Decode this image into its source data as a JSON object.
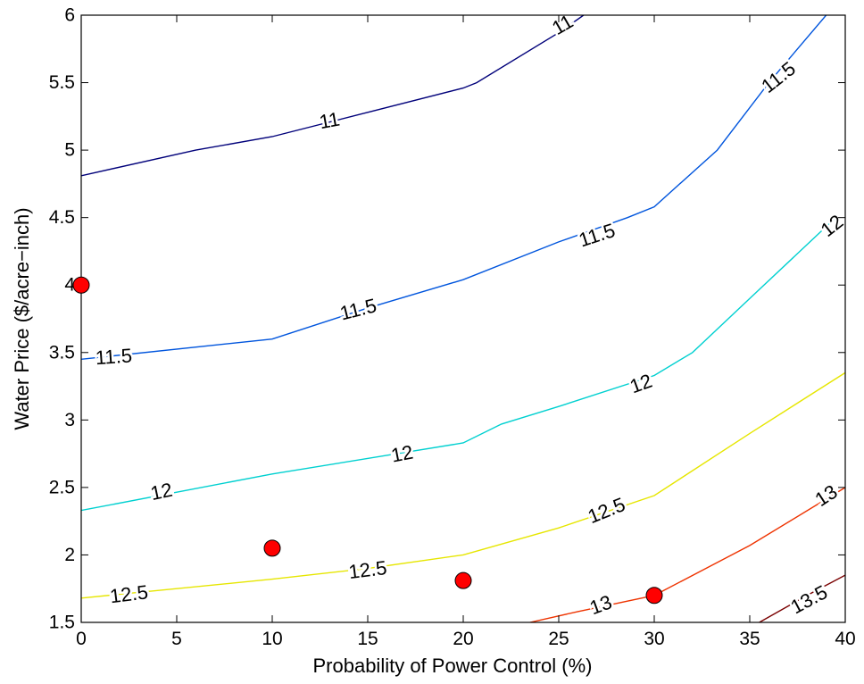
{
  "chart_data": {
    "type": "contour",
    "xlabel": "Probability of Power Control (%)",
    "ylabel": "Water Price ($/acre−inch)",
    "xlim": [
      0,
      40
    ],
    "ylim": [
      1.5,
      6
    ],
    "x_ticks": [
      0,
      5,
      10,
      15,
      20,
      25,
      30,
      35,
      40
    ],
    "y_ticks": [
      1.5,
      2,
      2.5,
      3,
      3.5,
      4,
      4.5,
      5,
      5.5,
      6
    ],
    "x_tick_labels": [
      "0",
      "5",
      "10",
      "15",
      "20",
      "25",
      "30",
      "35",
      "40"
    ],
    "y_tick_labels": [
      "1.5",
      "2",
      "2.5",
      "3",
      "3.5",
      "4",
      "4.5",
      "5",
      "5.5",
      "6"
    ],
    "grid": false,
    "contours": [
      {
        "level": 11,
        "color": "#00007a",
        "points": [
          [
            0,
            4.81
          ],
          [
            6,
            5.0
          ],
          [
            10,
            5.1
          ],
          [
            15,
            5.28
          ],
          [
            20,
            5.46
          ],
          [
            20.7,
            5.5
          ],
          [
            25,
            5.87
          ],
          [
            26.3,
            6.0
          ]
        ],
        "labels": [
          {
            "text": "11",
            "x": 13,
            "y": 5.22,
            "angle": -10
          },
          {
            "text": "11",
            "x": 25.2,
            "y": 5.93,
            "angle": -30
          }
        ]
      },
      {
        "level": 11.5,
        "color": "#0055dd",
        "points": [
          [
            0,
            3.45
          ],
          [
            10,
            3.6
          ],
          [
            15,
            3.83
          ],
          [
            20,
            4.04
          ],
          [
            25,
            4.32
          ],
          [
            28.6,
            4.5
          ],
          [
            30,
            4.58
          ],
          [
            33.3,
            5.0
          ],
          [
            36,
            5.5
          ],
          [
            39,
            6.0
          ]
        ],
        "labels": [
          {
            "text": "11.5",
            "x": 1.7,
            "y": 3.47,
            "angle": -4
          },
          {
            "text": "11.5",
            "x": 14.5,
            "y": 3.82,
            "angle": -14
          },
          {
            "text": "11.5",
            "x": 27.0,
            "y": 4.37,
            "angle": -18
          },
          {
            "text": "11.5",
            "x": 36.5,
            "y": 5.54,
            "angle": -38
          }
        ]
      },
      {
        "level": 12,
        "color": "#00d0d0",
        "points": [
          [
            0,
            2.33
          ],
          [
            10,
            2.6
          ],
          [
            20,
            2.83
          ],
          [
            22,
            2.97
          ],
          [
            25,
            3.1
          ],
          [
            30,
            3.33
          ],
          [
            32,
            3.5
          ],
          [
            35,
            3.9
          ],
          [
            39.5,
            4.5
          ]
        ],
        "labels": [
          {
            "text": "12",
            "x": 4.2,
            "y": 2.47,
            "angle": -12
          },
          {
            "text": "12",
            "x": 16.8,
            "y": 2.75,
            "angle": -11
          },
          {
            "text": "12",
            "x": 29.3,
            "y": 3.27,
            "angle": -20
          },
          {
            "text": "12",
            "x": 39.3,
            "y": 4.44,
            "angle": -38
          }
        ]
      },
      {
        "level": 12.5,
        "color": "#e6e600",
        "points": [
          [
            0,
            1.68
          ],
          [
            10,
            1.82
          ],
          [
            15,
            1.9
          ],
          [
            20,
            2.0
          ],
          [
            25,
            2.2
          ],
          [
            30,
            2.44
          ],
          [
            35,
            2.9
          ],
          [
            40,
            3.35
          ]
        ],
        "labels": [
          {
            "text": "12.5",
            "x": 2.5,
            "y": 1.71,
            "angle": -7
          },
          {
            "text": "12.5",
            "x": 15.0,
            "y": 1.89,
            "angle": -7
          },
          {
            "text": "12.5",
            "x": 27.5,
            "y": 2.33,
            "angle": -22
          }
        ]
      },
      {
        "level": 13,
        "color": "#ee3300",
        "points": [
          [
            23.5,
            1.5
          ],
          [
            26,
            1.58
          ],
          [
            30,
            1.7
          ],
          [
            35,
            2.07
          ],
          [
            40,
            2.5
          ]
        ],
        "labels": [
          {
            "text": "13",
            "x": 27.2,
            "y": 1.63,
            "angle": -20
          },
          {
            "text": "13",
            "x": 39.0,
            "y": 2.44,
            "angle": -33
          }
        ]
      },
      {
        "level": 13.5,
        "color": "#7a0000",
        "points": [
          [
            35.5,
            1.5
          ],
          [
            38,
            1.7
          ],
          [
            40,
            1.85
          ]
        ],
        "labels": [
          {
            "text": "13.5",
            "x": 38.1,
            "y": 1.67,
            "angle": -28
          }
        ]
      }
    ],
    "markers": [
      {
        "x": 0,
        "y": 4.0
      },
      {
        "x": 10,
        "y": 2.05
      },
      {
        "x": 20,
        "y": 1.81
      },
      {
        "x": 30,
        "y": 1.7
      }
    ],
    "marker_color": "#ff0000"
  }
}
